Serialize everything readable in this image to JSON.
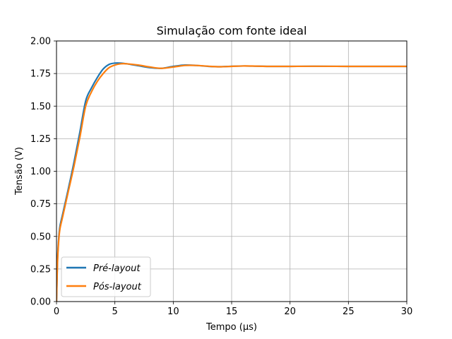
{
  "chart_data": {
    "type": "line",
    "title": "Simulação com fonte ideal",
    "xlabel": "Tempo (µs)",
    "ylabel": "Tensão (V)",
    "xlim": [
      0,
      30
    ],
    "ylim": [
      0.0,
      2.0
    ],
    "xticks": [
      0,
      5,
      10,
      15,
      20,
      25,
      30
    ],
    "xtick_labels": [
      "0",
      "5",
      "10",
      "15",
      "20",
      "25",
      "30"
    ],
    "yticks": [
      0.0,
      0.25,
      0.5,
      0.75,
      1.0,
      1.25,
      1.5,
      1.75,
      2.0
    ],
    "ytick_labels": [
      "0.00",
      "0.25",
      "0.50",
      "0.75",
      "1.00",
      "1.25",
      "1.50",
      "1.75",
      "2.00"
    ],
    "grid": true,
    "legend_position": "lower-left",
    "series": [
      {
        "name": "Pré-layout",
        "color": "#1f77b4",
        "x": [
          0,
          0.05,
          0.1,
          0.2,
          0.3,
          0.5,
          0.7,
          1.0,
          1.5,
          2.0,
          2.5,
          3.0,
          3.5,
          4.0,
          4.5,
          5.0,
          5.5,
          6.0,
          7.0,
          8.0,
          9.0,
          10.0,
          11.0,
          12.0,
          13.0,
          14.0,
          15.0,
          16.0,
          17.0,
          18.0,
          20.0,
          22.0,
          25.0,
          28.0,
          30.0
        ],
        "y": [
          0.0,
          0.2,
          0.35,
          0.5,
          0.58,
          0.66,
          0.74,
          0.86,
          1.07,
          1.3,
          1.54,
          1.64,
          1.72,
          1.785,
          1.82,
          1.83,
          1.83,
          1.825,
          1.81,
          1.795,
          1.79,
          1.805,
          1.815,
          1.812,
          1.805,
          1.802,
          1.806,
          1.808,
          1.807,
          1.805,
          1.805,
          1.806,
          1.805,
          1.805,
          1.805
        ]
      },
      {
        "name": "Pós-layout",
        "color": "#ff7f0e",
        "x": [
          0,
          0.05,
          0.1,
          0.2,
          0.3,
          0.5,
          0.7,
          1.0,
          1.5,
          2.0,
          2.5,
          3.0,
          3.5,
          4.0,
          4.5,
          5.0,
          5.5,
          6.0,
          7.0,
          8.0,
          9.0,
          10.0,
          11.0,
          12.0,
          13.0,
          14.0,
          15.0,
          16.0,
          17.0,
          18.0,
          20.0,
          22.0,
          25.0,
          28.0,
          30.0
        ],
        "y": [
          0.0,
          0.18,
          0.33,
          0.48,
          0.56,
          0.64,
          0.72,
          0.84,
          1.04,
          1.26,
          1.5,
          1.61,
          1.69,
          1.75,
          1.795,
          1.815,
          1.825,
          1.825,
          1.815,
          1.8,
          1.79,
          1.8,
          1.812,
          1.812,
          1.806,
          1.802,
          1.805,
          1.808,
          1.807,
          1.805,
          1.805,
          1.806,
          1.805,
          1.805,
          1.805
        ]
      }
    ]
  }
}
